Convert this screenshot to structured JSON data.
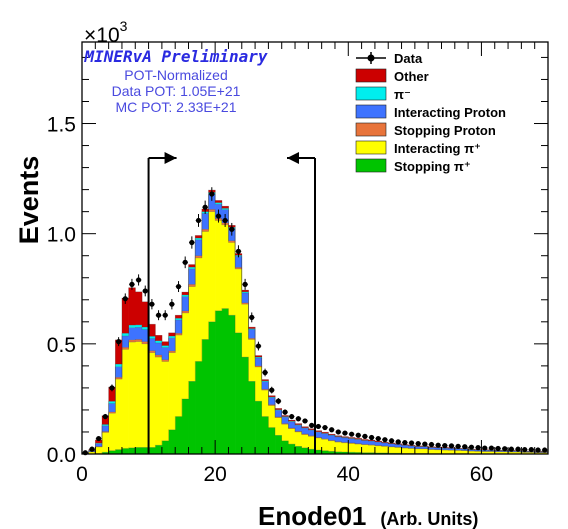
{
  "chart_data": {
    "type": "stacked-histogram",
    "title": "",
    "annotations": {
      "experiment": "MINERvA Preliminary",
      "lines": [
        "POT-Normalized",
        "Data POT: 1.05E+21",
        "MC POT: 2.33E+21"
      ],
      "exponent_base": "×10",
      "exponent_power": "3"
    },
    "xlabel": "Enode01",
    "xlabel_unit": "(Arb. Units)",
    "ylabel": "Events",
    "xlim": [
      0,
      70
    ],
    "ylim": [
      0,
      1870
    ],
    "xticks": [
      0,
      20,
      40,
      60
    ],
    "xtick_labels": [
      "0",
      "20",
      "40",
      "60"
    ],
    "yticks": [
      0,
      500,
      1000,
      1500
    ],
    "ytick_labels": [
      "0.0",
      "0.5",
      "1.0",
      "1.5"
    ],
    "bin_width": 1,
    "x_bins": [
      0,
      1,
      2,
      3,
      4,
      5,
      6,
      7,
      8,
      9,
      10,
      11,
      12,
      13,
      14,
      15,
      16,
      17,
      18,
      19,
      20,
      21,
      22,
      23,
      24,
      25,
      26,
      27,
      28,
      29,
      30,
      31,
      32,
      33,
      34,
      35,
      36,
      37,
      38,
      39,
      40,
      41,
      42,
      43,
      44,
      45,
      46,
      47,
      48,
      49,
      50,
      51,
      52,
      53,
      54,
      55,
      56,
      57,
      58,
      59,
      60,
      61,
      62,
      63,
      64,
      65,
      66,
      67,
      68,
      69
    ],
    "series": [
      {
        "name": "Stopping π⁺",
        "color": "#00c400",
        "values": [
          0,
          0,
          2,
          8,
          15,
          20,
          25,
          28,
          30,
          30,
          30,
          40,
          60,
          110,
          170,
          250,
          330,
          420,
          520,
          600,
          650,
          660,
          630,
          550,
          440,
          330,
          240,
          170,
          120,
          85,
          60,
          45,
          35,
          28,
          22,
          18,
          15,
          12,
          10,
          9,
          8,
          7,
          6,
          6,
          5,
          5,
          4,
          4,
          3,
          3,
          3,
          3,
          2,
          2,
          2,
          2,
          2,
          2,
          1,
          1,
          1,
          1,
          1,
          1,
          1,
          1,
          0,
          0,
          0,
          0
        ]
      },
      {
        "name": "Interacting π⁺",
        "color": "#ffff00",
        "values": [
          3,
          10,
          30,
          90,
          170,
          320,
          450,
          480,
          480,
          470,
          430,
          400,
          360,
          350,
          370,
          390,
          430,
          470,
          490,
          500,
          410,
          380,
          330,
          290,
          240,
          190,
          155,
          120,
          100,
          80,
          75,
          70,
          65,
          60,
          58,
          55,
          52,
          48,
          44,
          42,
          40,
          38,
          36,
          34,
          32,
          30,
          28,
          26,
          24,
          22,
          20,
          20,
          18,
          17,
          16,
          15,
          14,
          13,
          12,
          11,
          10,
          10,
          9,
          9,
          8,
          8,
          7,
          7,
          6,
          6
        ]
      },
      {
        "name": "Stopping Proton",
        "color": "#e8743b",
        "values": [
          0,
          0,
          2,
          4,
          6,
          8,
          9,
          10,
          10,
          10,
          9,
          9,
          8,
          8,
          8,
          9,
          10,
          10,
          10,
          10,
          9,
          9,
          8,
          7,
          6,
          5,
          5,
          4,
          4,
          3,
          3,
          3,
          3,
          3,
          3,
          2,
          2,
          2,
          2,
          2,
          2,
          2,
          2,
          2,
          2,
          1,
          1,
          1,
          1,
          1,
          1,
          1,
          1,
          1,
          1,
          1,
          1,
          1,
          1,
          1,
          1,
          1,
          1,
          1,
          1,
          1,
          1,
          1,
          1,
          1
        ]
      },
      {
        "name": "Interacting Proton",
        "color": "#3e73ff",
        "values": [
          1,
          5,
          12,
          26,
          38,
          48,
          52,
          55,
          55,
          55,
          55,
          55,
          55,
          58,
          60,
          65,
          70,
          72,
          72,
          70,
          65,
          60,
          55,
          50,
          45,
          40,
          36,
          34,
          32,
          30,
          29,
          28,
          27,
          26,
          25,
          24,
          23,
          22,
          21,
          20,
          19,
          18,
          17,
          16,
          15,
          14,
          13,
          12,
          11,
          10,
          9,
          9,
          8,
          8,
          7,
          7,
          6,
          6,
          5,
          5,
          5,
          4,
          4,
          4,
          4,
          3,
          3,
          3,
          3,
          3
        ]
      },
      {
        "name": "π⁻",
        "color": "#00eeee",
        "values": [
          0,
          1,
          3,
          6,
          10,
          12,
          12,
          12,
          11,
          11,
          10,
          10,
          9,
          9,
          8,
          8,
          8,
          8,
          8,
          7,
          7,
          6,
          6,
          5,
          5,
          4,
          4,
          4,
          3,
          3,
          3,
          3,
          3,
          2,
          2,
          2,
          2,
          2,
          2,
          2,
          2,
          2,
          1,
          1,
          1,
          1,
          1,
          1,
          1,
          1,
          1,
          1,
          1,
          1,
          1,
          1,
          1,
          1,
          1,
          1,
          1,
          1,
          1,
          1,
          1,
          1,
          1,
          1,
          1,
          1
        ]
      },
      {
        "name": "Other",
        "color": "#cc0000",
        "values": [
          1,
          4,
          15,
          40,
          65,
          110,
          160,
          170,
          150,
          115,
          55,
          25,
          18,
          15,
          14,
          13,
          12,
          12,
          12,
          11,
          10,
          10,
          9,
          8,
          8,
          7,
          7,
          6,
          6,
          6,
          5,
          5,
          5,
          5,
          5,
          5,
          5,
          4,
          4,
          4,
          4,
          4,
          4,
          4,
          4,
          3,
          3,
          3,
          3,
          3,
          3,
          3,
          3,
          3,
          3,
          3,
          2,
          2,
          2,
          2,
          2,
          2,
          2,
          2,
          2,
          2,
          2,
          2,
          2,
          2
        ]
      }
    ],
    "data": {
      "name": "Data",
      "color": "#000000",
      "values": [
        6,
        22,
        70,
        170,
        300,
        510,
        705,
        770,
        790,
        740,
        680,
        630,
        630,
        680,
        760,
        870,
        960,
        1060,
        1120,
        1180,
        1080,
        1060,
        1020,
        920,
        770,
        620,
        490,
        370,
        290,
        240,
        190,
        170,
        160,
        150,
        130,
        125,
        120,
        110,
        100,
        95,
        90,
        85,
        80,
        75,
        70,
        65,
        60,
        55,
        52,
        50,
        47,
        45,
        43,
        40,
        38,
        37,
        35,
        33,
        31,
        29,
        27,
        27,
        25,
        24,
        22,
        22,
        20,
        20,
        18,
        18
      ]
    },
    "legend": {
      "placement": "top-right",
      "entries": [
        {
          "label": "Data",
          "kind": "marker"
        },
        {
          "label": "Other",
          "kind": "fill",
          "color": "#cc0000"
        },
        {
          "label": "π⁻",
          "kind": "fill",
          "color": "#00eeee"
        },
        {
          "label": "Interacting Proton",
          "kind": "fill",
          "color": "#3e73ff"
        },
        {
          "label": "Stopping Proton",
          "kind": "fill",
          "color": "#e8743b"
        },
        {
          "label": "Interacting π⁺",
          "kind": "fill",
          "color": "#ffff00"
        },
        {
          "label": "Stopping π⁺",
          "kind": "fill",
          "color": "#00c400"
        }
      ]
    },
    "cut_lines": [
      {
        "x": 10,
        "direction": "right"
      },
      {
        "x": 35,
        "direction": "left"
      }
    ],
    "grid": false,
    "colors": {
      "annotation_blue": "#4a4adf",
      "experiment_blue": "#2a2ae0"
    }
  }
}
